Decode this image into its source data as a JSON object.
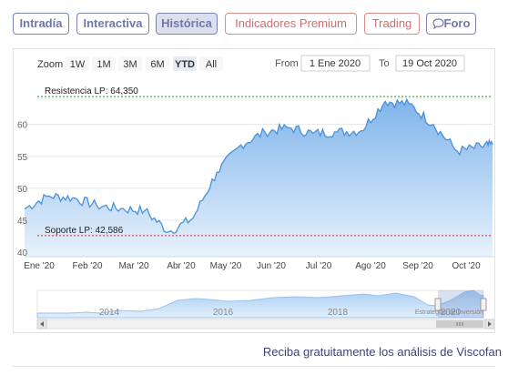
{
  "tabs": [
    {
      "label": "Intradía"
    },
    {
      "label": "Interactiva"
    },
    {
      "label": "Histórica"
    },
    {
      "label": "Indicadores Premium"
    },
    {
      "label": "Trading"
    },
    {
      "label": "Foro"
    }
  ],
  "zoom": {
    "label": "Zoom",
    "buttons": [
      "1W",
      "1M",
      "3M",
      "6M",
      "YTD",
      "All"
    ],
    "selected": "YTD"
  },
  "range": {
    "from_label": "From",
    "from_value": "1 Ene 2020",
    "to_label": "To",
    "to_value": "19 Oct 2020"
  },
  "chart_data": {
    "type": "area",
    "y_ticks": [
      40,
      45,
      50,
      55,
      60
    ],
    "ylim": [
      39.3,
      67.5
    ],
    "x_tick_labels": [
      "Ene '20",
      "Feb '20",
      "Mar '20",
      "Abr '20",
      "May '20",
      "Jun '20",
      "Jul '20",
      "Ago '20",
      "Sep '20",
      "Oct '20"
    ],
    "x_days": [
      0,
      15,
      30,
      45,
      60,
      75,
      90,
      105,
      120,
      135,
      150,
      165,
      180,
      195,
      210,
      225,
      240,
      255,
      270,
      285,
      292
    ],
    "series": [
      {
        "values": [
          46.8,
          48.8,
          48.5,
          47.3,
          46.8,
          46.5,
          43.2,
          45.3,
          52.5,
          56.8,
          58.8,
          59.5,
          58.6,
          58.8,
          59.0,
          63.6,
          63.2,
          60.0,
          55.8,
          56.5,
          56.8
        ]
      }
    ],
    "annotations": [
      {
        "label": "Resistencia LP: 64,350",
        "value": 64.35,
        "color": "#2e8b2e"
      },
      {
        "label": "Soporte LP: 42,586",
        "value": 42.586,
        "color": "#cc2b2b"
      }
    ],
    "navigator_labels": [
      "2014",
      "2016",
      "2018",
      "2020"
    ],
    "credit": "Estrategias de Inversión",
    "grid": true
  },
  "colors": {
    "line": "#4a90d9",
    "fill_top": "#7fb4ea",
    "fill_bottom": "#e8f2fc",
    "resistance": "#2e8b2e",
    "support": "#cc2b2b"
  },
  "footer_text": "Reciba gratuitamente los análisis de Viscofan"
}
